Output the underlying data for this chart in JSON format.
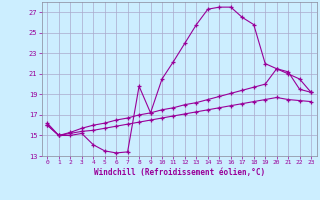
{
  "xlabel": "Windchill (Refroidissement éolien,°C)",
  "bg_color": "#cceeff",
  "grid_color": "#aaaacc",
  "line_color": "#990099",
  "xlim": [
    -0.5,
    23.5
  ],
  "ylim": [
    13,
    28
  ],
  "yticks": [
    13,
    15,
    17,
    19,
    21,
    23,
    25,
    27
  ],
  "xticks": [
    0,
    1,
    2,
    3,
    4,
    5,
    6,
    7,
    8,
    9,
    10,
    11,
    12,
    13,
    14,
    15,
    16,
    17,
    18,
    19,
    20,
    21,
    22,
    23
  ],
  "line1_x": [
    0,
    1,
    2,
    3,
    4,
    5,
    6,
    7,
    8,
    9,
    10,
    11,
    12,
    13,
    14,
    15,
    16,
    17,
    18,
    19,
    20,
    21,
    22,
    23
  ],
  "line1_y": [
    16.0,
    15.0,
    15.0,
    15.2,
    14.1,
    13.5,
    13.3,
    13.4,
    19.8,
    17.2,
    20.5,
    22.2,
    24.0,
    25.8,
    27.3,
    27.5,
    27.5,
    26.5,
    25.8,
    22.0,
    21.5,
    21.0,
    20.5,
    19.2
  ],
  "line2_x": [
    0,
    1,
    2,
    3,
    4,
    5,
    6,
    7,
    8,
    9,
    10,
    11,
    12,
    13,
    14,
    15,
    16,
    17,
    18,
    19,
    20,
    21,
    22,
    23
  ],
  "line2_y": [
    16.2,
    15.0,
    15.3,
    15.7,
    16.0,
    16.2,
    16.5,
    16.7,
    17.0,
    17.2,
    17.5,
    17.7,
    18.0,
    18.2,
    18.5,
    18.8,
    19.1,
    19.4,
    19.7,
    20.0,
    21.5,
    21.2,
    19.5,
    19.2
  ],
  "line3_x": [
    0,
    1,
    2,
    3,
    4,
    5,
    6,
    7,
    8,
    9,
    10,
    11,
    12,
    13,
    14,
    15,
    16,
    17,
    18,
    19,
    20,
    21,
    22,
    23
  ],
  "line3_y": [
    16.0,
    15.0,
    15.2,
    15.4,
    15.5,
    15.7,
    15.9,
    16.1,
    16.3,
    16.5,
    16.7,
    16.9,
    17.1,
    17.3,
    17.5,
    17.7,
    17.9,
    18.1,
    18.3,
    18.5,
    18.7,
    18.5,
    18.4,
    18.3
  ]
}
